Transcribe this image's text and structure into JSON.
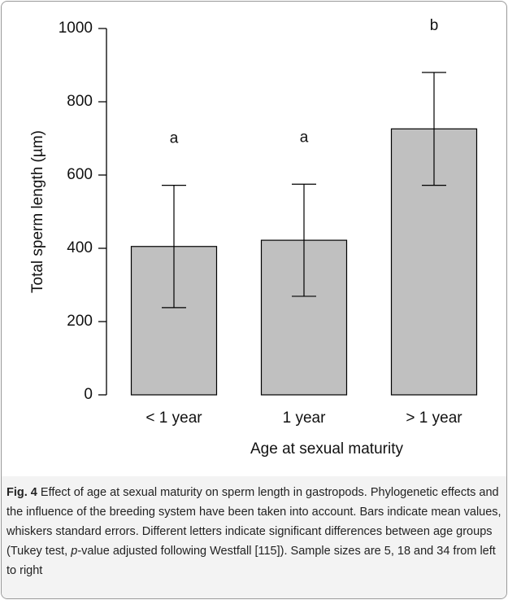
{
  "chart_data": {
    "type": "bar",
    "categories": [
      "< 1 year",
      "1 year",
      "> 1 year"
    ],
    "values": [
      405,
      422,
      726
    ],
    "errors": [
      167,
      153,
      154
    ],
    "letters": [
      "a",
      "a",
      "b"
    ],
    "color": "#c0c0c0",
    "ylabel": "Total sperm length (µm)",
    "xlabel": "Age at sexual maturity",
    "ylim": [
      0,
      1000
    ],
    "yticks": [
      0,
      200,
      400,
      600,
      800,
      1000
    ]
  },
  "caption": {
    "label": "Fig. 4",
    "text_before": " Effect of age at sexual maturity on sperm length in gastropods. Phylogenetic effects and the influence of the breeding system have been taken into account. Bars indicate mean values, whiskers standard errors. Different letters indicate significant differences between age groups (Tukey test, ",
    "italic": "p",
    "text_after": "-value adjusted following Westfall [115]). Sample sizes are 5, 18 and 34 from left to right"
  }
}
